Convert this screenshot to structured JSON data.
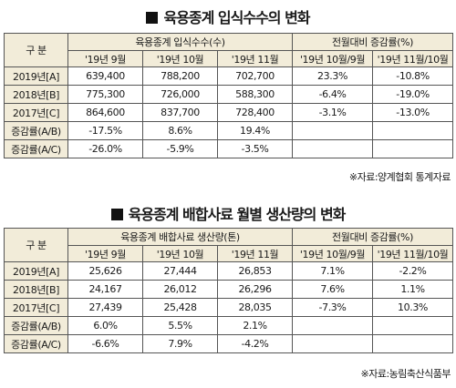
{
  "table1": {
    "title": "육용종계 입식수수의 변화",
    "corner": "구  분",
    "group_left": "육용종계 입식수수(수)",
    "group_right": "전월대비 증감률(%)",
    "columns": [
      "'19년 9월",
      "'19년 10월",
      "'19년 11월",
      "'19년 10월/9월",
      "'19년 11월/10월"
    ],
    "rows": [
      {
        "label": "2019년[A]",
        "cells": [
          "639,400",
          "788,200",
          "702,700",
          "23.3%",
          "-10.8%"
        ]
      },
      {
        "label": "2018년[B]",
        "cells": [
          "775,300",
          "726,000",
          "588,300",
          "-6.4%",
          "-19.0%"
        ]
      },
      {
        "label": "2017년[C]",
        "cells": [
          "864,600",
          "837,700",
          "728,400",
          "-3.1%",
          "-13.0%"
        ]
      },
      {
        "label": "증감률(A/B)",
        "cells": [
          "-17.5%",
          "8.6%",
          "19.4%",
          "",
          ""
        ]
      },
      {
        "label": "증감률(A/C)",
        "cells": [
          "-26.0%",
          "-5.9%",
          "-3.5%",
          "",
          ""
        ]
      }
    ],
    "source": "※자료:양계협회 통계자료"
  },
  "table2": {
    "title": "육용종계 배합사료 월별 생산량의 변화",
    "corner": "구  분",
    "group_left": "육용종계 배합사료 생산량(톤)",
    "group_right": "전월대비 증감률(%)",
    "columns": [
      "'19년 9월",
      "'19년 10월",
      "'19년 11월",
      "'19년 10월/9월",
      "'19년 11월/10월"
    ],
    "rows": [
      {
        "label": "2019년[A]",
        "cells": [
          "25,626",
          "27,444",
          "26,853",
          "7.1%",
          "-2.2%"
        ]
      },
      {
        "label": "2018년[B]",
        "cells": [
          "24,167",
          "26,012",
          "26,296",
          "7.6%",
          "1.1%"
        ]
      },
      {
        "label": "2017년[C]",
        "cells": [
          "27,439",
          "25,428",
          "28,035",
          "-7.3%",
          "10.3%"
        ]
      },
      {
        "label": "증감률(A/B)",
        "cells": [
          "6.0%",
          "5.5%",
          "2.1%",
          "",
          ""
        ]
      },
      {
        "label": "증감률(A/C)",
        "cells": [
          "-6.6%",
          "7.9%",
          "-4.2%",
          "",
          ""
        ]
      }
    ],
    "source": "※자료:농림축산식품부"
  }
}
